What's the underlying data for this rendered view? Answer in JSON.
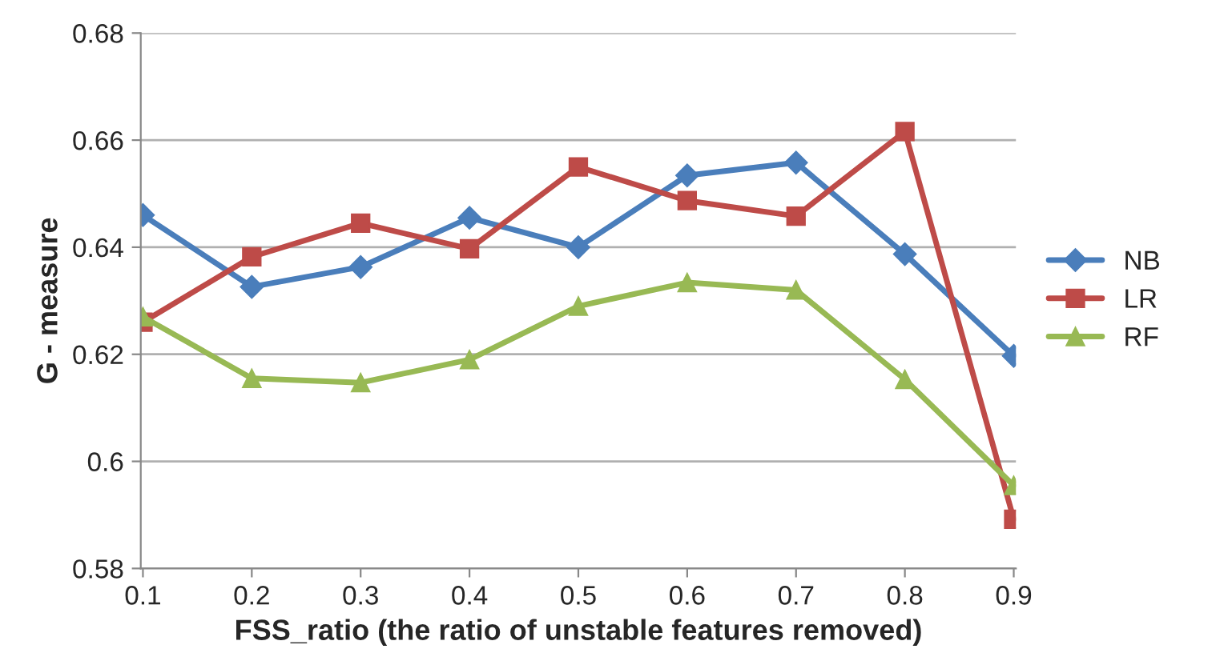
{
  "chart_data": {
    "type": "line",
    "xlabel": "FSS_ratio (the ratio of unstable features removed)",
    "ylabel": "G - measure",
    "categories": [
      "0.1",
      "0.2",
      "0.3",
      "0.4",
      "0.5",
      "0.6",
      "0.7",
      "0.8",
      "0.9"
    ],
    "series": [
      {
        "name": "NB",
        "color": "#4a7ebb",
        "marker": "diamond",
        "values": [
          0.646,
          0.6326,
          0.6363,
          0.6455,
          0.64,
          0.6534,
          0.6558,
          0.6387,
          0.6197
        ]
      },
      {
        "name": "LR",
        "color": "#be4b48",
        "marker": "square",
        "values": [
          0.626,
          0.6382,
          0.6445,
          0.6397,
          0.655,
          0.6487,
          0.6458,
          0.6616,
          0.5892
        ]
      },
      {
        "name": "RF",
        "color": "#98b954",
        "marker": "triangle",
        "values": [
          0.627,
          0.6155,
          0.6147,
          0.619,
          0.629,
          0.6334,
          0.632,
          0.6153,
          0.5955
        ]
      }
    ],
    "ylim": [
      0.58,
      0.68
    ],
    "yticks": [
      {
        "value": 0.58,
        "label": "0.58"
      },
      {
        "value": 0.6,
        "label": "0.6"
      },
      {
        "value": 0.62,
        "label": "0.62"
      },
      {
        "value": 0.64,
        "label": "0.64"
      },
      {
        "value": 0.66,
        "label": "0.66"
      },
      {
        "value": 0.68,
        "label": "0.68"
      }
    ],
    "grid": "y",
    "legend": "right"
  }
}
